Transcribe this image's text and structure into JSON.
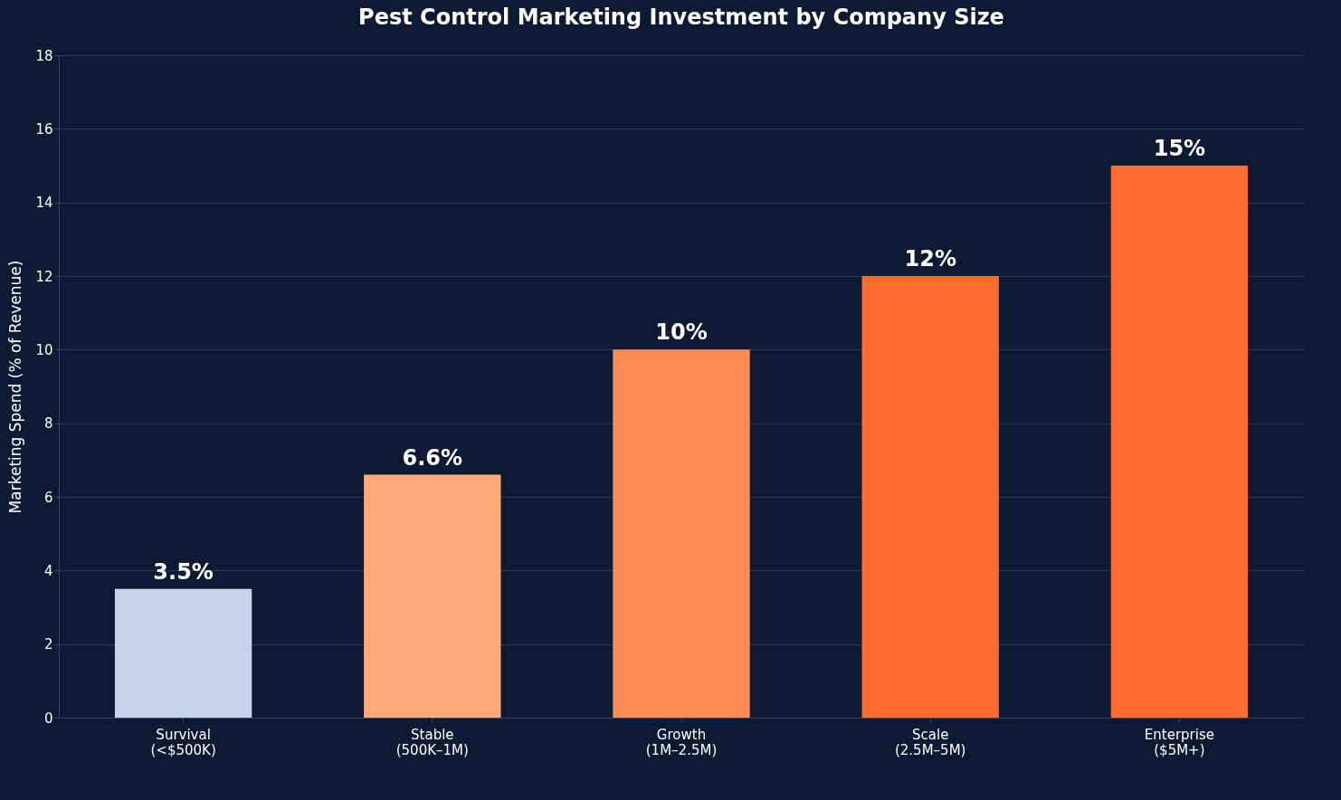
{
  "chart_data": {
    "type": "bar",
    "title": "Pest Control Marketing Investment by Company Size",
    "ylabel": "Marketing Spend (% of Revenue)",
    "categories": [
      "Survival\n(<$500K)",
      "Stable\n(500K–1M)",
      "Growth\n(1M–2.5M)",
      "Scale\n(2.5M–5M)",
      "Enterprise\n($5M+)"
    ],
    "values": [
      3.5,
      6.6,
      10,
      12,
      15
    ],
    "colors": [
      "#c5d4ea",
      "#ffaa7a",
      "#ff8c55",
      "#ff6b2f",
      "#ff6b2f"
    ],
    "value_labels": [
      "3.5%",
      "6.6%",
      "10%",
      "12%",
      "15%"
    ],
    "ylim": [
      0,
      18
    ],
    "yticks": [
      0,
      2,
      4,
      6,
      8,
      10,
      12,
      14,
      16,
      18
    ],
    "grid": "y"
  }
}
